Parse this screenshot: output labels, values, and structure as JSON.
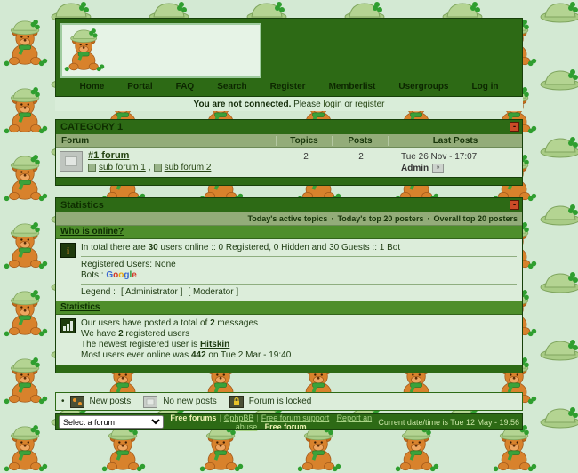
{
  "colors": {
    "dark_green": "#2d6a15",
    "bar_green": "#4e8e2b",
    "sage_green": "#93ac79",
    "page_bg": "#d3e9d3",
    "row_bg": "#dcedda",
    "collapse_red": "#cc4b28"
  },
  "nav": {
    "items": [
      "Home",
      "Portal",
      "FAQ",
      "Search",
      "Register",
      "Memberlist",
      "Usergroups",
      "Log in"
    ]
  },
  "connect": {
    "status": "You are not connected.",
    "please": " Please ",
    "login": "login",
    "or": " or ",
    "register": "register"
  },
  "category": {
    "title": "CATEGORY 1",
    "collapse_label": "-",
    "columns": {
      "forum": "Forum",
      "topics": "Topics",
      "posts": "Posts",
      "last_posts": "Last Posts"
    },
    "row": {
      "name": "#1 forum",
      "subforum1": "sub forum 1",
      "sub_sep": ", ",
      "subforum2": "sub forum 2",
      "topics": "2",
      "posts": "2",
      "last_date": "Tue 26 Nov - 17:07",
      "last_user": "Admin"
    }
  },
  "stats": {
    "title": "Statistics",
    "collapse_label": "-",
    "links": [
      "Today's active topics",
      "Today's top 20 posters",
      "Overall top 20 posters"
    ],
    "link_sep": "·",
    "who_title": "Who is online?",
    "online": {
      "total_pre": "In total there are ",
      "total_count": "30",
      "total_post": " users online :: 0 Registered, 0 Hidden and 30 Guests :: 1 Bot",
      "registered": "Registered Users: None",
      "bots_label": "Bots : ",
      "bot_letters": [
        {
          "ch": "G",
          "style": "color:#3a66d0"
        },
        {
          "ch": "o",
          "style": "color:#d43b2a"
        },
        {
          "ch": "o",
          "style": "color:#e8a50c"
        },
        {
          "ch": "g",
          "style": "color:#3a66d0"
        },
        {
          "ch": "l",
          "style": "color:#2a9a3c"
        },
        {
          "ch": "e",
          "style": "color:#d43b2a"
        }
      ],
      "legend_label": "Legend :",
      "legend_admin": "[ Administrator ]",
      "legend_mod": "[ Moderator ]"
    },
    "totals_title": "Statistics",
    "totals": {
      "l1_pre": "Our users have posted a total of ",
      "l1_count": "2",
      "l1_post": " messages",
      "l2_pre": "We have ",
      "l2_count": "2",
      "l2_post": " registered users",
      "l3_pre": "The newest registered user is ",
      "l3_user": "Hitskin",
      "l4_pre": "Most users ever online was ",
      "l4_count": "442",
      "l4_post": " on Tue 2 Mar - 19:40"
    }
  },
  "legend_bar": {
    "bullet": "•",
    "new_posts": "New posts",
    "no_new_posts": "No new posts",
    "locked": "Forum is locked"
  },
  "footer": {
    "select_label": "Select a forum",
    "links": [
      {
        "label": "Free forums"
      },
      {
        "label": "©phpBB"
      },
      {
        "label": "Free forum support"
      },
      {
        "label": "Report an abuse"
      },
      {
        "label": "Free forum"
      }
    ],
    "link_sep": "|",
    "datetime": "Current date/time is Tue 12 May - 19:56"
  }
}
